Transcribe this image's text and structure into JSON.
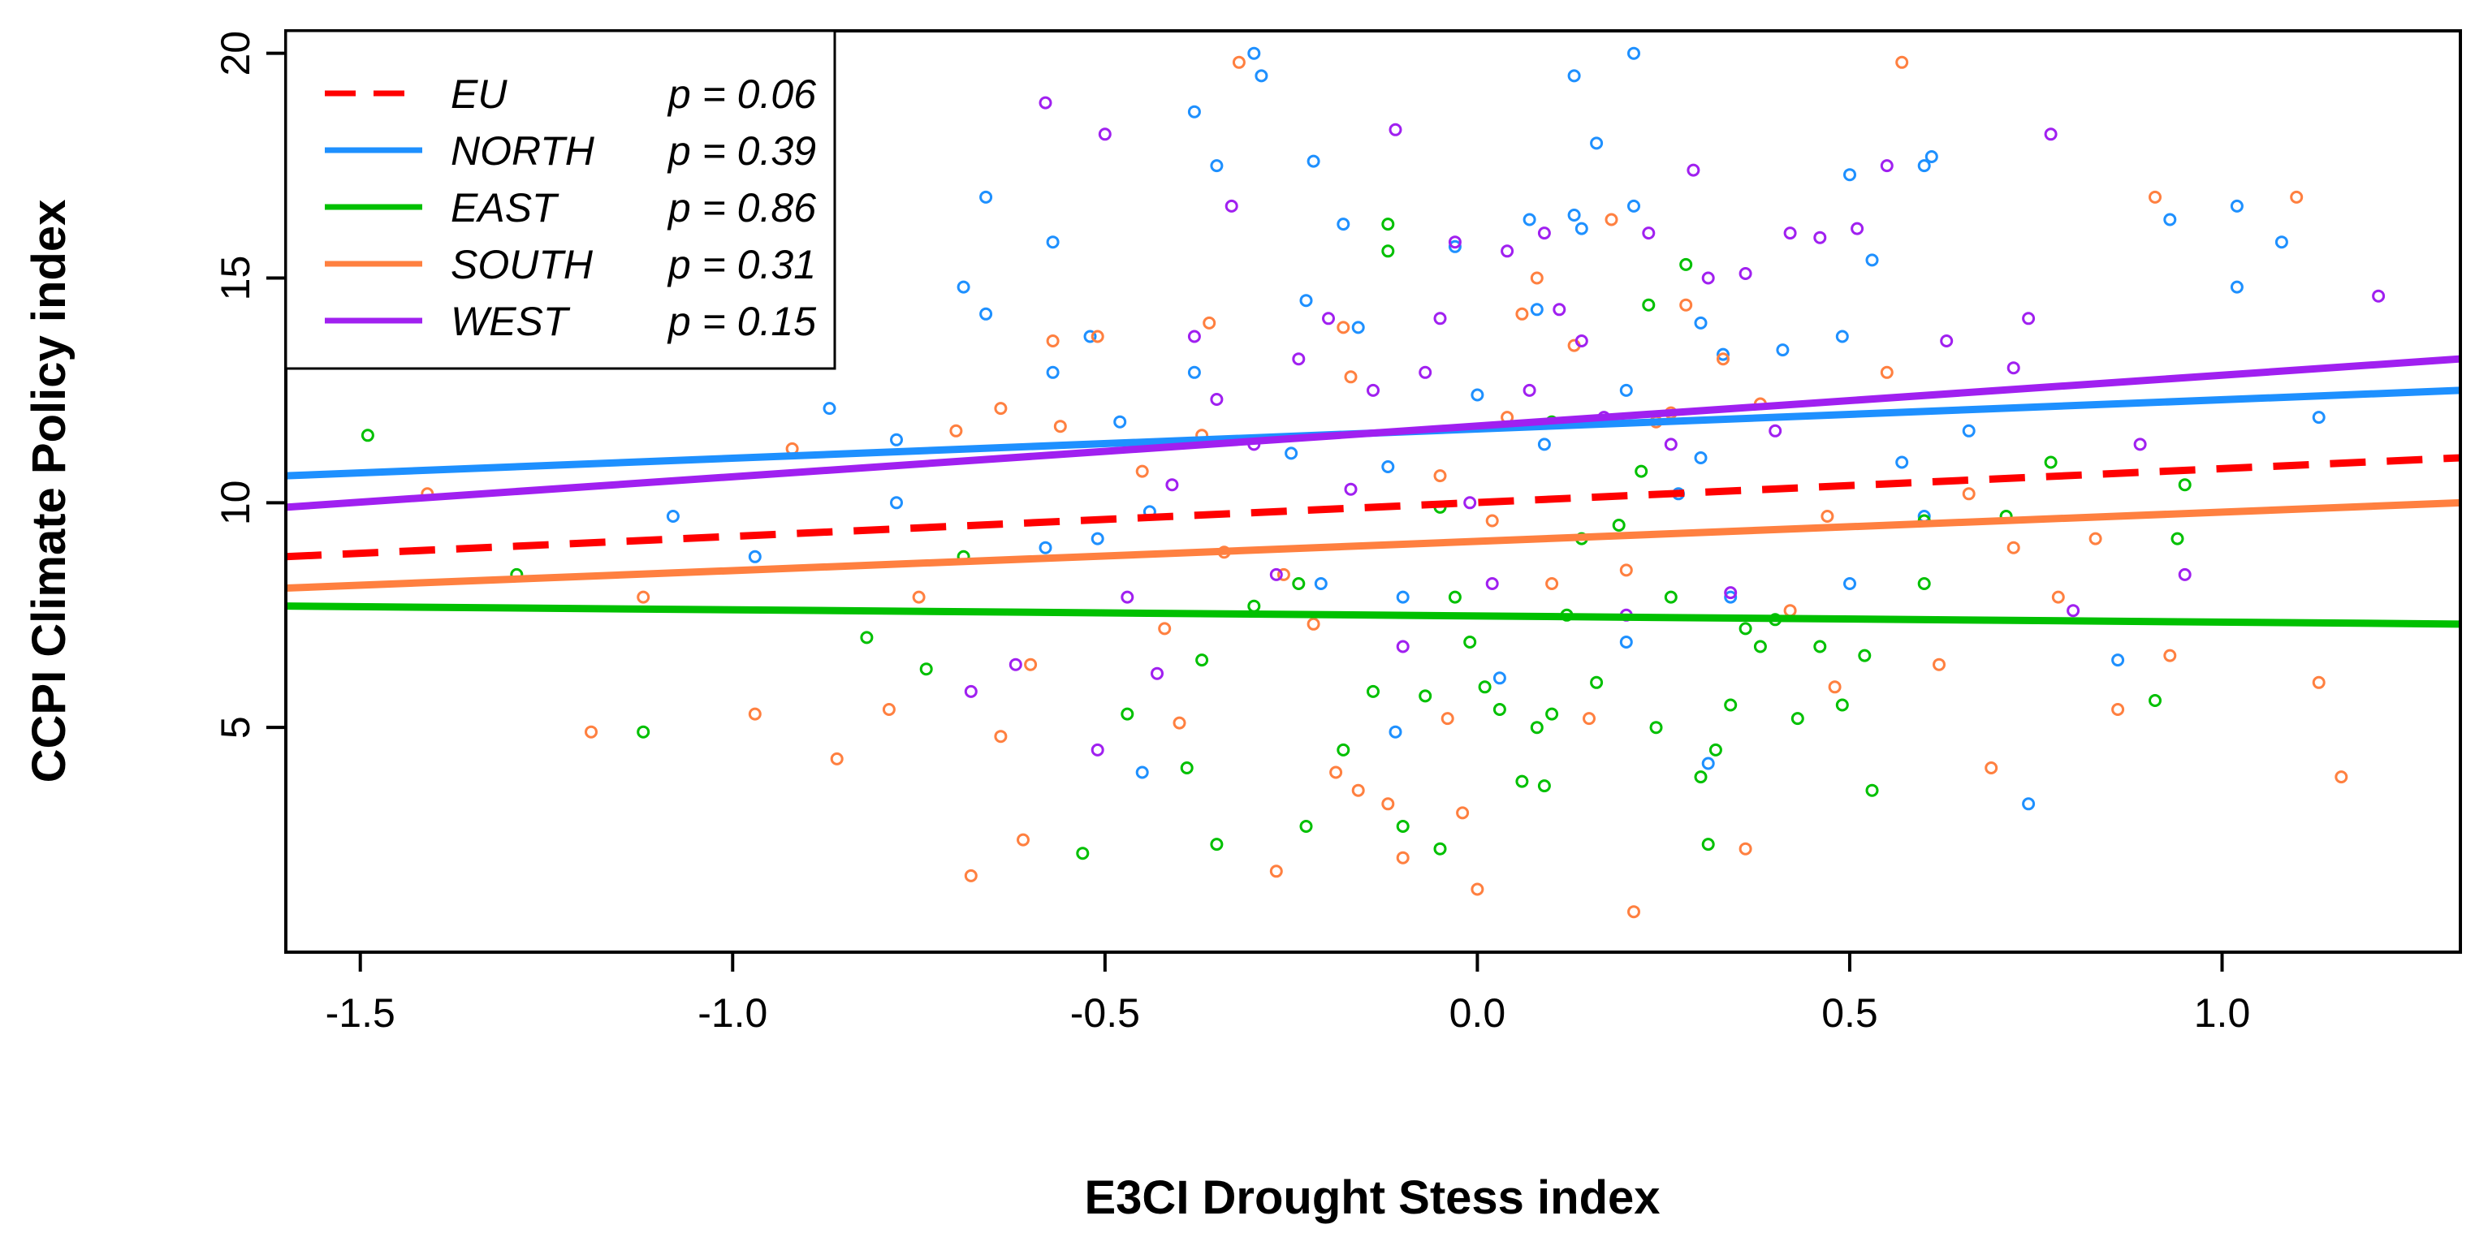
{
  "chart_data": {
    "type": "scatter",
    "xlabel": "E3CI Drought Stess index",
    "ylabel": "CCPI Climate Policy index",
    "xlim": [
      -1.6,
      1.32
    ],
    "ylim": [
      0.0,
      20.5
    ],
    "xticks": [
      "-1.5",
      "-1.0",
      "-0.5",
      "0.0",
      "0.5",
      "1.0"
    ],
    "yticks": [
      "5",
      "10",
      "15",
      "20"
    ],
    "grid": false,
    "legend_position": "top-left",
    "series": [
      {
        "name": "EU",
        "p_label": "p = 0.06",
        "color": "#ff0000",
        "dash": true,
        "line": [
          [
            -1.6,
            8.8
          ],
          [
            1.32,
            11.0
          ]
        ],
        "points": []
      },
      {
        "name": "NORTH",
        "p_label": "p = 0.39",
        "color": "#1e90ff",
        "dash": false,
        "line": [
          [
            -1.6,
            10.6
          ],
          [
            1.32,
            12.5
          ]
        ],
        "points": [
          [
            -0.3,
            20.0
          ],
          [
            -0.29,
            19.5
          ],
          [
            0.21,
            20.0
          ],
          [
            -0.38,
            18.7
          ],
          [
            0.13,
            19.5
          ],
          [
            0.16,
            18.0
          ],
          [
            -0.35,
            17.5
          ],
          [
            -0.22,
            17.6
          ],
          [
            0.5,
            17.3
          ],
          [
            0.6,
            17.5
          ],
          [
            0.61,
            17.7
          ],
          [
            -0.66,
            16.8
          ],
          [
            -0.18,
            16.2
          ],
          [
            0.07,
            16.3
          ],
          [
            0.13,
            16.4
          ],
          [
            0.21,
            16.6
          ],
          [
            0.93,
            16.3
          ],
          [
            1.02,
            16.6
          ],
          [
            -0.57,
            15.8
          ],
          [
            -0.03,
            15.7
          ],
          [
            0.14,
            16.1
          ],
          [
            0.53,
            15.4
          ],
          [
            1.08,
            15.8
          ],
          [
            -0.69,
            14.8
          ],
          [
            -0.66,
            14.2
          ],
          [
            -0.23,
            14.5
          ],
          [
            -0.16,
            13.9
          ],
          [
            0.08,
            14.3
          ],
          [
            0.3,
            14.0
          ],
          [
            1.02,
            14.8
          ],
          [
            -0.52,
            13.7
          ],
          [
            -0.38,
            12.9
          ],
          [
            0.0,
            12.4
          ],
          [
            0.2,
            12.5
          ],
          [
            0.33,
            13.3
          ],
          [
            0.41,
            13.4
          ],
          [
            0.49,
            13.7
          ],
          [
            -0.57,
            12.9
          ],
          [
            -0.87,
            12.1
          ],
          [
            -0.78,
            11.4
          ],
          [
            -0.48,
            11.8
          ],
          [
            -0.25,
            11.1
          ],
          [
            -0.12,
            10.8
          ],
          [
            0.09,
            11.3
          ],
          [
            0.3,
            11.0
          ],
          [
            0.57,
            10.9
          ],
          [
            0.66,
            11.6
          ],
          [
            1.13,
            11.9
          ],
          [
            -0.78,
            10.0
          ],
          [
            -1.08,
            9.7
          ],
          [
            -0.44,
            9.8
          ],
          [
            0.27,
            10.2
          ],
          [
            0.5,
            8.2
          ],
          [
            0.6,
            9.7
          ],
          [
            0.86,
            6.5
          ],
          [
            -0.97,
            8.8
          ],
          [
            -0.58,
            9.0
          ],
          [
            -0.51,
            9.2
          ],
          [
            -0.21,
            8.2
          ],
          [
            -0.1,
            7.9
          ],
          [
            0.34,
            7.9
          ],
          [
            -0.45,
            4.0
          ],
          [
            -0.11,
            4.9
          ],
          [
            0.31,
            4.2
          ],
          [
            0.74,
            3.3
          ],
          [
            0.2,
            6.9
          ],
          [
            0.03,
            6.1
          ]
        ]
      },
      {
        "name": "EAST",
        "p_label": "p = 0.86",
        "color": "#00c000",
        "dash": false,
        "line": [
          [
            -1.6,
            7.7
          ],
          [
            1.32,
            7.3
          ]
        ],
        "points": [
          [
            -1.49,
            11.5
          ],
          [
            -1.29,
            8.4
          ],
          [
            -1.12,
            4.9
          ],
          [
            -0.82,
            7.0
          ],
          [
            -0.74,
            6.3
          ],
          [
            -0.69,
            8.8
          ],
          [
            -0.53,
            2.2
          ],
          [
            -0.47,
            5.3
          ],
          [
            -0.39,
            4.1
          ],
          [
            -0.37,
            6.5
          ],
          [
            -0.35,
            2.4
          ],
          [
            -0.3,
            7.7
          ],
          [
            -0.24,
            8.2
          ],
          [
            -0.23,
            2.8
          ],
          [
            -0.18,
            4.5
          ],
          [
            -0.14,
            5.8
          ],
          [
            -0.12,
            15.6
          ],
          [
            -0.12,
            16.2
          ],
          [
            -0.1,
            2.8
          ],
          [
            -0.07,
            5.7
          ],
          [
            -0.05,
            2.3
          ],
          [
            -0.03,
            7.9
          ],
          [
            -0.01,
            6.9
          ],
          [
            0.01,
            5.9
          ],
          [
            0.03,
            5.4
          ],
          [
            0.06,
            3.8
          ],
          [
            0.08,
            5.0
          ],
          [
            0.09,
            3.7
          ],
          [
            0.1,
            5.3
          ],
          [
            0.12,
            7.5
          ],
          [
            0.14,
            9.2
          ],
          [
            0.16,
            6.0
          ],
          [
            0.19,
            9.5
          ],
          [
            0.22,
            10.7
          ],
          [
            0.23,
            14.4
          ],
          [
            0.24,
            5.0
          ],
          [
            0.26,
            7.9
          ],
          [
            0.28,
            15.3
          ],
          [
            0.3,
            3.9
          ],
          [
            0.31,
            2.4
          ],
          [
            0.32,
            4.5
          ],
          [
            0.34,
            5.5
          ],
          [
            0.36,
            7.2
          ],
          [
            0.38,
            6.8
          ],
          [
            0.4,
            7.4
          ],
          [
            0.43,
            5.2
          ],
          [
            0.46,
            6.8
          ],
          [
            0.49,
            5.5
          ],
          [
            0.52,
            6.6
          ],
          [
            0.53,
            3.6
          ],
          [
            0.6,
            9.6
          ],
          [
            0.6,
            8.2
          ],
          [
            0.71,
            9.7
          ],
          [
            0.77,
            10.9
          ],
          [
            0.91,
            5.6
          ],
          [
            0.94,
            9.2
          ],
          [
            0.95,
            10.4
          ],
          [
            -0.05,
            9.9
          ],
          [
            0.1,
            11.8
          ]
        ]
      },
      {
        "name": "SOUTH",
        "p_label": "p = 0.31",
        "color": "#ff8040",
        "dash": false,
        "line": [
          [
            -1.6,
            8.1
          ],
          [
            1.32,
            10.0
          ]
        ],
        "points": [
          [
            -1.41,
            10.2
          ],
          [
            -1.19,
            4.9
          ],
          [
            -1.12,
            7.9
          ],
          [
            -0.97,
            5.3
          ],
          [
            -0.92,
            11.2
          ],
          [
            -0.86,
            4.3
          ],
          [
            -0.79,
            5.4
          ],
          [
            -0.75,
            7.9
          ],
          [
            -0.7,
            11.6
          ],
          [
            -0.68,
            1.7
          ],
          [
            -0.64,
            4.8
          ],
          [
            -0.64,
            12.1
          ],
          [
            -0.61,
            2.5
          ],
          [
            -0.6,
            6.4
          ],
          [
            -0.57,
            13.6
          ],
          [
            -0.56,
            11.7
          ],
          [
            -0.51,
            13.7
          ],
          [
            -0.45,
            10.7
          ],
          [
            -0.42,
            7.2
          ],
          [
            -0.4,
            5.1
          ],
          [
            -0.37,
            11.5
          ],
          [
            -0.36,
            14.0
          ],
          [
            -0.34,
            8.9
          ],
          [
            -0.32,
            19.8
          ],
          [
            -0.27,
            1.8
          ],
          [
            -0.26,
            8.4
          ],
          [
            -0.22,
            7.3
          ],
          [
            -0.19,
            4.0
          ],
          [
            -0.18,
            13.9
          ],
          [
            -0.17,
            12.8
          ],
          [
            -0.16,
            3.6
          ],
          [
            -0.12,
            3.3
          ],
          [
            -0.1,
            2.1
          ],
          [
            -0.05,
            10.6
          ],
          [
            -0.04,
            5.2
          ],
          [
            -0.02,
            3.1
          ],
          [
            0.0,
            1.4
          ],
          [
            0.02,
            9.6
          ],
          [
            0.04,
            11.9
          ],
          [
            0.06,
            14.2
          ],
          [
            0.08,
            15.0
          ],
          [
            0.1,
            8.2
          ],
          [
            0.13,
            13.5
          ],
          [
            0.15,
            5.2
          ],
          [
            0.18,
            16.3
          ],
          [
            0.2,
            8.5
          ],
          [
            0.21,
            0.9
          ],
          [
            0.24,
            11.8
          ],
          [
            0.26,
            12.0
          ],
          [
            0.28,
            14.4
          ],
          [
            0.33,
            13.2
          ],
          [
            0.36,
            2.3
          ],
          [
            0.38,
            12.2
          ],
          [
            0.42,
            7.6
          ],
          [
            0.47,
            9.7
          ],
          [
            0.48,
            5.9
          ],
          [
            0.55,
            12.9
          ],
          [
            0.57,
            19.8
          ],
          [
            0.62,
            6.4
          ],
          [
            0.66,
            10.2
          ],
          [
            0.69,
            4.1
          ],
          [
            0.72,
            9.0
          ],
          [
            0.78,
            7.9
          ],
          [
            0.83,
            9.2
          ],
          [
            0.86,
            5.4
          ],
          [
            0.91,
            16.8
          ],
          [
            0.93,
            6.6
          ],
          [
            1.1,
            16.8
          ],
          [
            1.13,
            6.0
          ],
          [
            1.16,
            3.9
          ]
        ]
      },
      {
        "name": "WEST",
        "p_label": "p = 0.15",
        "color": "#a020f0",
        "dash": false,
        "line": [
          [
            -1.6,
            9.9
          ],
          [
            1.32,
            13.2
          ]
        ],
        "points": [
          [
            -0.58,
            18.9
          ],
          [
            -0.5,
            18.2
          ],
          [
            -0.68,
            5.8
          ],
          [
            -0.62,
            6.4
          ],
          [
            -0.51,
            4.5
          ],
          [
            -0.47,
            7.9
          ],
          [
            -0.43,
            6.2
          ],
          [
            -0.41,
            10.4
          ],
          [
            -0.38,
            13.7
          ],
          [
            -0.35,
            12.3
          ],
          [
            -0.33,
            16.6
          ],
          [
            -0.3,
            11.3
          ],
          [
            -0.27,
            8.4
          ],
          [
            -0.24,
            13.2
          ],
          [
            -0.2,
            14.1
          ],
          [
            -0.17,
            10.3
          ],
          [
            -0.14,
            12.5
          ],
          [
            -0.11,
            18.3
          ],
          [
            -0.1,
            6.8
          ],
          [
            -0.07,
            12.9
          ],
          [
            -0.05,
            14.1
          ],
          [
            -0.03,
            15.8
          ],
          [
            -0.01,
            10.0
          ],
          [
            0.02,
            8.2
          ],
          [
            0.04,
            15.6
          ],
          [
            0.07,
            12.5
          ],
          [
            0.09,
            16.0
          ],
          [
            0.11,
            14.3
          ],
          [
            0.14,
            13.6
          ],
          [
            0.17,
            11.9
          ],
          [
            0.2,
            7.5
          ],
          [
            0.23,
            16.0
          ],
          [
            0.26,
            11.3
          ],
          [
            0.29,
            17.4
          ],
          [
            0.31,
            15.0
          ],
          [
            0.34,
            8.0
          ],
          [
            0.36,
            15.1
          ],
          [
            0.4,
            11.6
          ],
          [
            0.42,
            16.0
          ],
          [
            0.46,
            15.9
          ],
          [
            0.51,
            16.1
          ],
          [
            0.55,
            17.5
          ],
          [
            0.63,
            13.6
          ],
          [
            0.72,
            13.0
          ],
          [
            0.74,
            14.1
          ],
          [
            0.77,
            18.2
          ],
          [
            0.8,
            7.6
          ],
          [
            0.89,
            11.3
          ],
          [
            0.95,
            8.4
          ],
          [
            1.21,
            14.6
          ]
        ]
      }
    ]
  }
}
